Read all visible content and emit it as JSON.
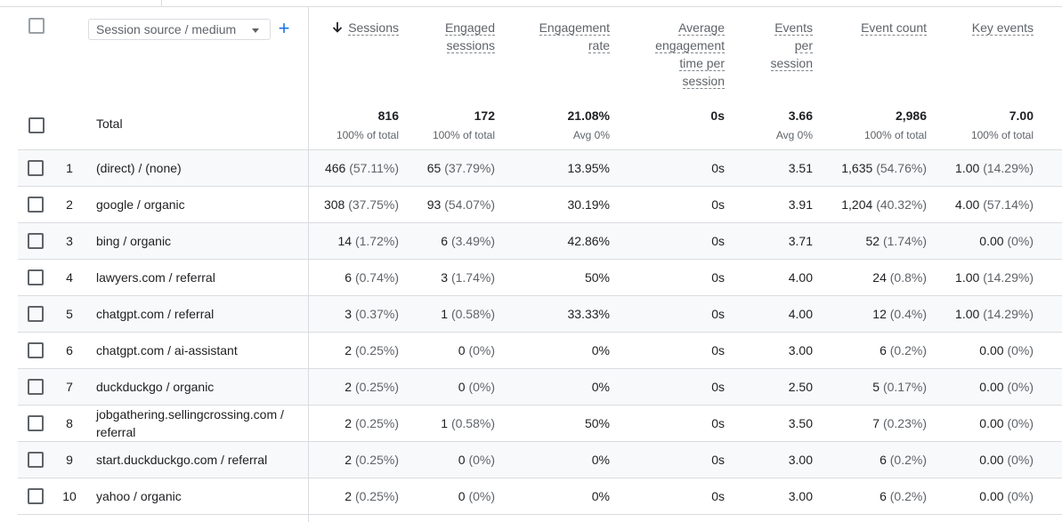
{
  "dimension_selector": {
    "label": "Session source / medium",
    "add_icon": "plus-icon"
  },
  "columns": [
    {
      "key": "sessions",
      "label": "Sessions",
      "sorted": "desc"
    },
    {
      "key": "engaged",
      "label": "Engaged sessions"
    },
    {
      "key": "rate",
      "label": "Engagement rate"
    },
    {
      "key": "avgtime",
      "label": "Average engagement time per session"
    },
    {
      "key": "eps",
      "label": "Events per session"
    },
    {
      "key": "events",
      "label": "Event count"
    },
    {
      "key": "key",
      "label": "Key events"
    }
  ],
  "total": {
    "label": "Total",
    "values": [
      {
        "value": "816",
        "sub": "100% of total"
      },
      {
        "value": "172",
        "sub": "100% of total"
      },
      {
        "value": "21.08%",
        "sub": "Avg 0%"
      },
      {
        "value": "0s",
        "sub": ""
      },
      {
        "value": "3.66",
        "sub": "Avg 0%"
      },
      {
        "value": "2,986",
        "sub": "100% of total"
      },
      {
        "value": "7.00",
        "sub": "100% of total"
      }
    ]
  },
  "rows": [
    {
      "num": "1",
      "dim": "(direct) / (none)",
      "sessions": "466",
      "sessions_pct": "(57.11%)",
      "engaged": "65",
      "engaged_pct": "(37.79%)",
      "rate": "13.95%",
      "avgtime": "0s",
      "eps": "3.51",
      "events": "1,635",
      "events_pct": "(54.76%)",
      "key": "1.00",
      "key_pct": "(14.29%)"
    },
    {
      "num": "2",
      "dim": "google / organic",
      "sessions": "308",
      "sessions_pct": "(37.75%)",
      "engaged": "93",
      "engaged_pct": "(54.07%)",
      "rate": "30.19%",
      "avgtime": "0s",
      "eps": "3.91",
      "events": "1,204",
      "events_pct": "(40.32%)",
      "key": "4.00",
      "key_pct": "(57.14%)"
    },
    {
      "num": "3",
      "dim": "bing / organic",
      "sessions": "14",
      "sessions_pct": "(1.72%)",
      "engaged": "6",
      "engaged_pct": "(3.49%)",
      "rate": "42.86%",
      "avgtime": "0s",
      "eps": "3.71",
      "events": "52",
      "events_pct": "(1.74%)",
      "key": "0.00",
      "key_pct": "(0%)"
    },
    {
      "num": "4",
      "dim": "lawyers.com / referral",
      "sessions": "6",
      "sessions_pct": "(0.74%)",
      "engaged": "3",
      "engaged_pct": "(1.74%)",
      "rate": "50%",
      "avgtime": "0s",
      "eps": "4.00",
      "events": "24",
      "events_pct": "(0.8%)",
      "key": "1.00",
      "key_pct": "(14.29%)"
    },
    {
      "num": "5",
      "dim": "chatgpt.com / referral",
      "sessions": "3",
      "sessions_pct": "(0.37%)",
      "engaged": "1",
      "engaged_pct": "(0.58%)",
      "rate": "33.33%",
      "avgtime": "0s",
      "eps": "4.00",
      "events": "12",
      "events_pct": "(0.4%)",
      "key": "1.00",
      "key_pct": "(14.29%)"
    },
    {
      "num": "6",
      "dim": "chatgpt.com / ai-assistant",
      "sessions": "2",
      "sessions_pct": "(0.25%)",
      "engaged": "0",
      "engaged_pct": "(0%)",
      "rate": "0%",
      "avgtime": "0s",
      "eps": "3.00",
      "events": "6",
      "events_pct": "(0.2%)",
      "key": "0.00",
      "key_pct": "(0%)"
    },
    {
      "num": "7",
      "dim": "duckduckgo / organic",
      "sessions": "2",
      "sessions_pct": "(0.25%)",
      "engaged": "0",
      "engaged_pct": "(0%)",
      "rate": "0%",
      "avgtime": "0s",
      "eps": "2.50",
      "events": "5",
      "events_pct": "(0.17%)",
      "key": "0.00",
      "key_pct": "(0%)"
    },
    {
      "num": "8",
      "dim": "jobgathering.sellingcrossing.com / referral",
      "sessions": "2",
      "sessions_pct": "(0.25%)",
      "engaged": "1",
      "engaged_pct": "(0.58%)",
      "rate": "50%",
      "avgtime": "0s",
      "eps": "3.50",
      "events": "7",
      "events_pct": "(0.23%)",
      "key": "0.00",
      "key_pct": "(0%)"
    },
    {
      "num": "9",
      "dim": "start.duckduckgo.com / referral",
      "sessions": "2",
      "sessions_pct": "(0.25%)",
      "engaged": "0",
      "engaged_pct": "(0%)",
      "rate": "0%",
      "avgtime": "0s",
      "eps": "3.00",
      "events": "6",
      "events_pct": "(0.2%)",
      "key": "0.00",
      "key_pct": "(0%)"
    },
    {
      "num": "10",
      "dim": "yahoo / organic",
      "sessions": "2",
      "sessions_pct": "(0.25%)",
      "engaged": "0",
      "engaged_pct": "(0%)",
      "rate": "0%",
      "avgtime": "0s",
      "eps": "3.00",
      "events": "6",
      "events_pct": "(0.2%)",
      "key": "0.00",
      "key_pct": "(0%)"
    }
  ]
}
